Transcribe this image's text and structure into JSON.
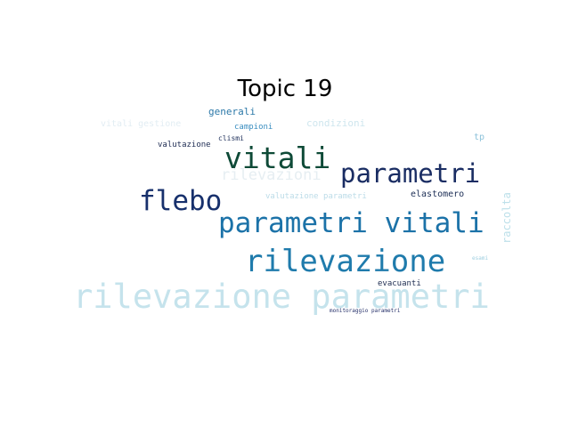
{
  "figure": {
    "title": "Topic 19"
  },
  "words": [
    {
      "text": "rilevazione parametri",
      "color": "#c5e3ec"
    },
    {
      "text": "rilevazione",
      "color": "#1f7bac"
    },
    {
      "text": "parametri vitali",
      "color": "#1b72a8"
    },
    {
      "text": "vitali",
      "color": "#0e4a37"
    },
    {
      "text": "parametri",
      "color": "#1a2d63"
    },
    {
      "text": "flebo",
      "color": "#17306c"
    },
    {
      "text": "rilevazioni",
      "color": "#e6eef2"
    },
    {
      "text": "generali",
      "color": "#2b78a8"
    },
    {
      "text": "condizioni",
      "color": "#cfe6ee"
    },
    {
      "text": "vitali gestione",
      "color": "#e2edf3"
    },
    {
      "text": "campioni",
      "color": "#3a8ec0"
    },
    {
      "text": "clismi",
      "color": "#1e2f5a"
    },
    {
      "text": "valutazione",
      "color": "#1d2b52"
    },
    {
      "text": "tp",
      "color": "#8cc2da"
    },
    {
      "text": "valutazione parametri",
      "color": "#bcdce8"
    },
    {
      "text": "elastomero",
      "color": "#1c2e55"
    },
    {
      "text": "raccolta",
      "color": "#bde0ea"
    },
    {
      "text": "esami",
      "color": "#9fcfe0"
    },
    {
      "text": "evacuanti",
      "color": "#1e2c50"
    },
    {
      "text": "monitoraggio parametri",
      "color": "#26306a"
    }
  ]
}
